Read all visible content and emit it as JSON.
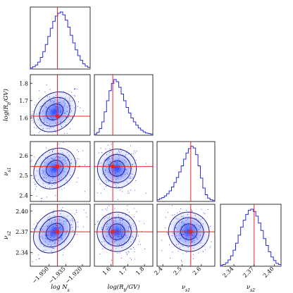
{
  "colors": {
    "samples": "#1a3cff",
    "contour": "#1e1e8c",
    "histogram": "#2b2bd8",
    "truth": "#ee2222",
    "frame": "#000000"
  },
  "chart_data": {
    "type": "corner",
    "parameters": [
      {
        "id": "logNs",
        "label": "log N_s",
        "range": [
          -1.967,
          -1.913
        ],
        "ticks": [
          -1.95,
          -1.935,
          -1.92
        ],
        "tick_labels": [
          "−1.950",
          "−1.935",
          "−1.920"
        ],
        "truth": -1.9425,
        "mean": -1.945,
        "sigma": 0.0075,
        "hist": [
          2,
          4,
          7,
          12,
          20,
          30,
          42,
          56,
          70,
          82,
          91,
          96,
          98,
          93,
          84,
          72,
          58,
          45,
          33,
          23,
          15,
          9,
          5,
          3
        ]
      },
      {
        "id": "logRb",
        "label": "log(R_b/GV)",
        "range": [
          1.5,
          1.85
        ],
        "ticks": [
          1.6,
          1.7,
          1.8
        ],
        "tick_labels": [
          "1.6",
          "1.7",
          "1.8"
        ],
        "truth": 1.61,
        "mean": 1.635,
        "sigma": 0.045,
        "hist": [
          2,
          5,
          12,
          24,
          42,
          62,
          80,
          93,
          100,
          96,
          86,
          74,
          62,
          50,
          40,
          31,
          24,
          18,
          13,
          9,
          6,
          4,
          3,
          2
        ]
      },
      {
        "id": "nu1",
        "label": "ν_s1",
        "range": [
          2.37,
          2.67
        ],
        "ticks": [
          2.4,
          2.5,
          2.6
        ],
        "tick_labels": [
          "2.4",
          "2.5",
          "2.6"
        ],
        "truth": 2.545,
        "mean": 2.535,
        "sigma": 0.04,
        "hist": [
          3,
          5,
          7,
          10,
          14,
          19,
          26,
          34,
          43,
          53,
          64,
          76,
          87,
          95,
          99,
          96,
          84,
          64,
          42,
          24,
          12,
          6,
          3,
          2
        ]
      },
      {
        "id": "nu2",
        "label": "ν_s2",
        "range": [
          2.32,
          2.41
        ],
        "ticks": [
          2.34,
          2.37,
          2.4
        ],
        "tick_labels": [
          "2.34",
          "2.37",
          "2.40"
        ],
        "truth": 2.37,
        "mean": 2.37,
        "sigma": 0.012,
        "hist": [
          2,
          3,
          6,
          11,
          18,
          28,
          40,
          54,
          68,
          80,
          90,
          97,
          99,
          95,
          87,
          75,
          62,
          48,
          36,
          25,
          16,
          10,
          5,
          3
        ]
      }
    ],
    "correlations": [
      {
        "pair": [
          0,
          1
        ],
        "rho": 0.3
      },
      {
        "pair": [
          0,
          2
        ],
        "rho": 0.3
      },
      {
        "pair": [
          0,
          3
        ],
        "rho": 0.45
      },
      {
        "pair": [
          1,
          2
        ],
        "rho": -0.1
      },
      {
        "pair": [
          1,
          3
        ],
        "rho": -0.15
      },
      {
        "pair": [
          2,
          3
        ],
        "rho": 0.05
      }
    ],
    "x_labels": [
      "log N_s",
      "log(R_b/GV)",
      "ν_s1",
      "ν_s2"
    ],
    "y_labels": [
      "log(R_b/GV)",
      "ν_s1",
      "ν_s2"
    ]
  }
}
